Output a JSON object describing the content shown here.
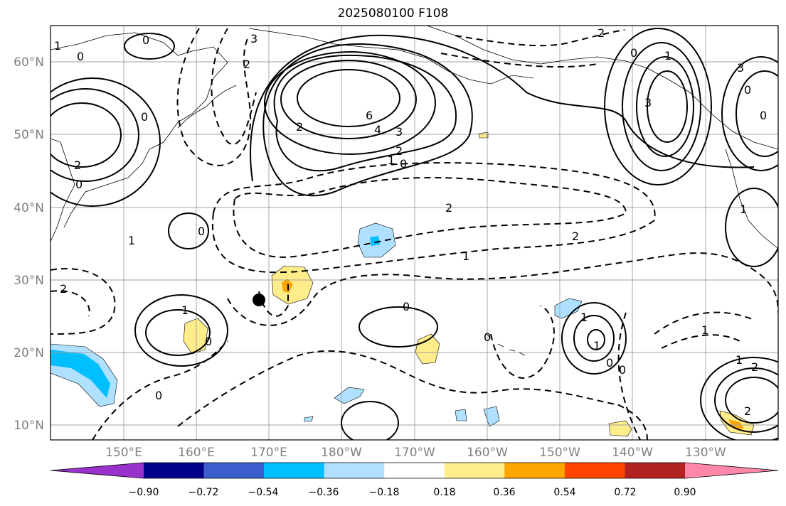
{
  "title": "2025080100 F108",
  "latitude_labels": [
    "10°N",
    "20°N",
    "30°N",
    "40°N",
    "50°N",
    "60°N"
  ],
  "longitude_labels": [
    "150°E",
    "160°E",
    "170°E",
    "180°W",
    "170°W",
    "160°W",
    "150°W",
    "140°W",
    "130°W"
  ],
  "colorbar": {
    "tick_labels": [
      "−0.90",
      "−0.72",
      "−0.54",
      "−0.36",
      "−0.18",
      "0.18",
      "0.36",
      "0.54",
      "0.72",
      "0.90"
    ],
    "colors": [
      "#9932cc",
      "#00008b",
      "#3a5fcd",
      "#00bfff",
      "#b0e0ff",
      "#ffffff",
      "#ffec8b",
      "#ffa500",
      "#ff4500",
      "#b22222",
      "#ff88aa"
    ]
  },
  "contour_labels": [
    "0",
    "3",
    "2",
    "1",
    "0",
    "2",
    "6",
    "4",
    "3",
    "2",
    "1",
    "0",
    "0",
    "0",
    "3",
    "0",
    "3",
    "1",
    "2",
    "0",
    "0",
    "2",
    "1",
    "0",
    "1",
    "2",
    "1",
    "0",
    "0",
    "1",
    "0",
    "1",
    "1",
    "2",
    "2",
    "1",
    "0",
    "0",
    "0",
    "2",
    "2",
    "1"
  ],
  "marker": {
    "name": "storm-center-marker"
  }
}
